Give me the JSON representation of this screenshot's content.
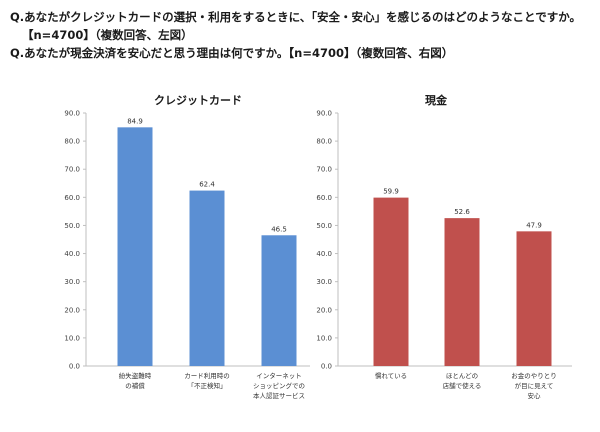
{
  "questions": {
    "q1_line1": "Q.あなたがクレジットカードの選択・利用をするときに、「安全・安心」を感じるのはどのようなことですか。",
    "q1_line2": "【n=4700】（複数回答、左図）",
    "q2_line1": "Q.あなたが現金決済を安心だと思う理由は何ですか。【n=4700】（複数回答、右図）"
  },
  "colors": {
    "credit": "#5B8FD3",
    "cash": "#C0504D",
    "axis": "#bfbfbf"
  },
  "chart_data": [
    {
      "type": "bar",
      "title": "クレジットカード",
      "ylim": [
        0,
        90
      ],
      "yticks": [
        "0.0",
        "10.0",
        "20.0",
        "30.0",
        "40.0",
        "50.0",
        "60.0",
        "70.0",
        "80.0",
        "90.0"
      ],
      "categories": [
        [
          "紛失盗難時",
          "の補償"
        ],
        [
          "カード利用時の",
          "「不正検知」"
        ],
        [
          "インターネット",
          "ショッピングでの",
          "本人認証サービス"
        ]
      ],
      "values": [
        84.9,
        62.4,
        46.5
      ],
      "value_labels": [
        "84.9",
        "62.4",
        "46.5"
      ],
      "grid": false
    },
    {
      "type": "bar",
      "title": "現金",
      "ylim": [
        0,
        90
      ],
      "yticks": [
        "0.0",
        "10.0",
        "20.0",
        "30.0",
        "40.0",
        "50.0",
        "60.0",
        "70.0",
        "80.0",
        "90.0"
      ],
      "categories": [
        [
          "慣れている"
        ],
        [
          "ほとんどの",
          "店舗で使える"
        ],
        [
          "お金のやりとり",
          "が目に見えて",
          "安心"
        ]
      ],
      "values": [
        59.9,
        52.6,
        47.9
      ],
      "value_labels": [
        "59.9",
        "52.6",
        "47.9"
      ],
      "grid": false
    }
  ]
}
